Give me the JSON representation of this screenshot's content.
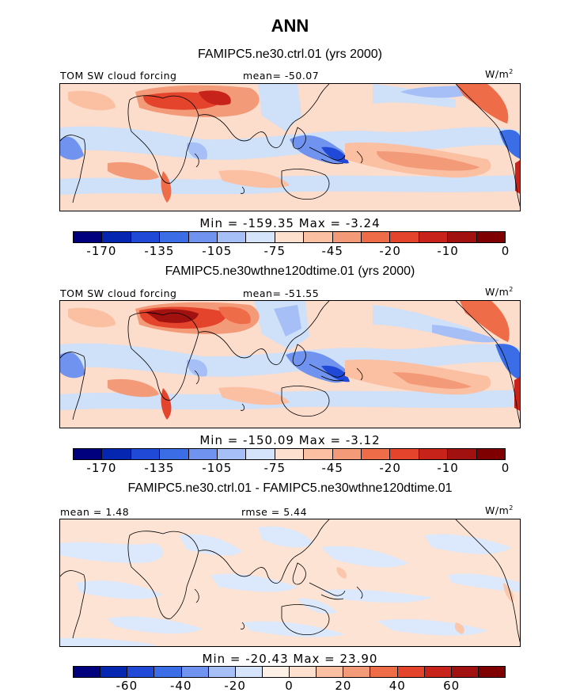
{
  "figure_title": "ANN",
  "panels": [
    {
      "subtitle": "FAMIPC5.ne30.ctrl.01 (yrs 2000)",
      "left_label": "TOM SW cloud forcing",
      "center_label": "mean=  -50.07",
      "units_label": "W/m",
      "units_exp": "2",
      "minmax": "Min = -159.35 Max =  -3.24",
      "ticks": [
        "-170",
        "-135",
        "-105",
        "-75",
        "-45",
        "-20",
        "-10",
        "0"
      ],
      "colors": [
        "#00007f",
        "#0526b0",
        "#1f49d6",
        "#3b6ee6",
        "#6f93ef",
        "#a6bff7",
        "#d6e4fb",
        "#fee0cf",
        "#fbbfa2",
        "#f39a79",
        "#ee6d48",
        "#e3442b",
        "#c7231a",
        "#a11110",
        "#7f0000"
      ]
    },
    {
      "subtitle": "FAMIPC5.ne30wthne120dtime.01 (yrs 2000)",
      "left_label": "TOM SW cloud forcing",
      "center_label": "mean=  -51.55",
      "units_label": "W/m",
      "units_exp": "2",
      "minmax": "Min = -150.09 Max =  -3.12",
      "ticks": [
        "-170",
        "-135",
        "-105",
        "-75",
        "-45",
        "-20",
        "-10",
        "0"
      ],
      "colors": [
        "#00007f",
        "#0526b0",
        "#1f49d6",
        "#3b6ee6",
        "#6f93ef",
        "#a6bff7",
        "#d6e4fb",
        "#fee0cf",
        "#fbbfa2",
        "#f39a79",
        "#ee6d48",
        "#e3442b",
        "#c7231a",
        "#a11110",
        "#7f0000"
      ]
    },
    {
      "subtitle": "FAMIPC5.ne30.ctrl.01 - FAMIPC5.ne30wthne120dtime.01",
      "left_label": "mean =   1.48",
      "center_label": "rmse =   5.44",
      "units_label": "W/m",
      "units_exp": "2",
      "minmax": "Min = -20.43 Max =  23.90",
      "ticks": [
        "-60",
        "-40",
        "-20",
        "0",
        "20",
        "40",
        "60"
      ],
      "colors": [
        "#00007f",
        "#0526b0",
        "#1f49d6",
        "#3b6ee6",
        "#6f93ef",
        "#a6bff7",
        "#d6e4fb",
        "#fdf0e6",
        "#fee0cf",
        "#fbbfa2",
        "#f39a79",
        "#ee6d48",
        "#e3442b",
        "#c7231a",
        "#a11110",
        "#7f0000"
      ]
    }
  ]
}
